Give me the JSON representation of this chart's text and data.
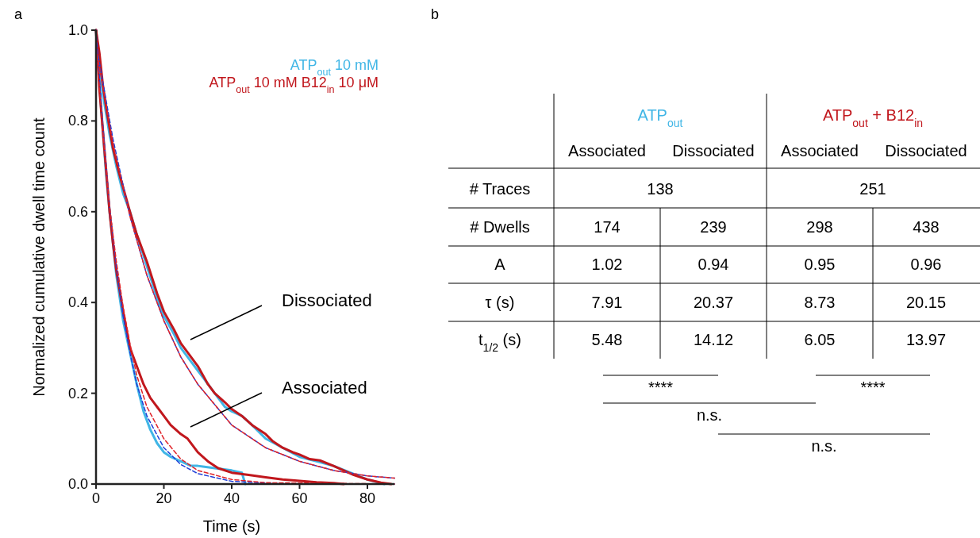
{
  "chart_data": [
    {
      "type": "line",
      "title": "a",
      "xlabel": "Time (s)",
      "ylabel": "Normalized cumulative dwell time count",
      "xlim": [
        0,
        88
      ],
      "xticks": [
        0,
        20,
        40,
        60,
        80
      ],
      "ylim": [
        0,
        1
      ],
      "yticks": [
        {
          "value": 0,
          "label": "0.0"
        },
        {
          "value": 0.2,
          "label": "0.2"
        },
        {
          "value": 0.4,
          "label": "0.4"
        },
        {
          "value": 0.6,
          "label": "0.6"
        },
        {
          "value": 0.8,
          "label": "0.8"
        },
        {
          "value": 1,
          "label": "1.0"
        }
      ],
      "grid": false,
      "legend": "top right",
      "annotations": [
        "Dissociated",
        "Associated"
      ],
      "series": [
        {
          "name": "ATP$_{out}$ 10 mM",
          "color": "#41b6e6",
          "line_style": "solid",
          "x": [
            0,
            2,
            4,
            6,
            8,
            10,
            12,
            15,
            18,
            20,
            23,
            25,
            28,
            30,
            33,
            35,
            38,
            40,
            43,
            46,
            50,
            55,
            60,
            65,
            70,
            75,
            80,
            85
          ],
          "values": [
            1.0,
            0.86,
            0.77,
            0.7,
            0.64,
            0.6,
            0.55,
            0.48,
            0.41,
            0.37,
            0.33,
            0.3,
            0.27,
            0.25,
            0.22,
            0.2,
            0.17,
            0.16,
            0.15,
            0.13,
            0.1,
            0.08,
            0.06,
            0.05,
            0.04,
            0.025,
            0.01,
            0
          ]
        },
        {
          "color": "#41b6e6",
          "line_style": "solid",
          "x": [
            0,
            1,
            2,
            3,
            4,
            5,
            6,
            8,
            10,
            12,
            14,
            16,
            18,
            20,
            22,
            25,
            28,
            30,
            35,
            40,
            43,
            44
          ],
          "values": [
            1.0,
            0.88,
            0.78,
            0.68,
            0.6,
            0.53,
            0.46,
            0.36,
            0.29,
            0.22,
            0.16,
            0.12,
            0.09,
            0.07,
            0.06,
            0.05,
            0.04,
            0.04,
            0.035,
            0.03,
            0.025,
            0
          ]
        },
        {
          "name": "ATP$_{out}$ 10 mM B12$_{in}$ 10 μM",
          "color": "#c1171d",
          "line_style": "solid",
          "x": [
            0,
            1,
            2,
            3,
            5,
            7,
            10,
            12,
            15,
            18,
            20,
            23,
            25,
            27,
            30,
            33,
            35,
            38,
            40,
            43,
            46,
            50,
            52,
            55,
            58,
            60,
            63,
            66,
            70,
            73,
            76,
            80,
            84,
            87
          ],
          "values": [
            1.0,
            0.95,
            0.88,
            0.83,
            0.74,
            0.68,
            0.6,
            0.55,
            0.49,
            0.42,
            0.38,
            0.34,
            0.31,
            0.29,
            0.26,
            0.22,
            0.2,
            0.18,
            0.165,
            0.15,
            0.13,
            0.11,
            0.095,
            0.08,
            0.07,
            0.065,
            0.055,
            0.052,
            0.04,
            0.03,
            0.02,
            0.01,
            0.003,
            0
          ]
        },
        {
          "color": "#c1171d",
          "line_style": "solid",
          "x": [
            0,
            1,
            2,
            3,
            4,
            5,
            6,
            8,
            10,
            12,
            14,
            16,
            18,
            20,
            22,
            25,
            27,
            30,
            33,
            36,
            40,
            45,
            50,
            55,
            60,
            65,
            70,
            73
          ],
          "values": [
            1.0,
            0.87,
            0.78,
            0.69,
            0.6,
            0.53,
            0.47,
            0.38,
            0.3,
            0.26,
            0.22,
            0.19,
            0.17,
            0.15,
            0.13,
            0.11,
            0.1,
            0.07,
            0.05,
            0.035,
            0.025,
            0.02,
            0.015,
            0.01,
            0.007,
            0.004,
            0.002,
            0
          ]
        },
        {
          "color": "#1f3fd8",
          "line_style": "dashed",
          "x": [
            0,
            2,
            4,
            6,
            8,
            10,
            12,
            15,
            20,
            25,
            30,
            40,
            50,
            60,
            88
          ],
          "values": [
            1.0,
            0.79,
            0.61,
            0.48,
            0.37,
            0.29,
            0.22,
            0.15,
            0.08,
            0.043,
            0.023,
            0.006,
            0.002,
            0,
            0
          ]
        },
        {
          "color": "#1f3fd8",
          "line_style": "dashed",
          "x": [
            0,
            5,
            10,
            15,
            20,
            25,
            30,
            40,
            50,
            60,
            70,
            80,
            88
          ],
          "values": [
            0.97,
            0.76,
            0.59,
            0.46,
            0.36,
            0.28,
            0.22,
            0.13,
            0.08,
            0.05,
            0.03,
            0.018,
            0.013
          ]
        },
        {
          "color": "#e0242a",
          "line_style": "dashed",
          "x": [
            0,
            2,
            4,
            6,
            8,
            10,
            12,
            15,
            20,
            25,
            30,
            40,
            50,
            88
          ],
          "values": [
            0.97,
            0.78,
            0.61,
            0.49,
            0.39,
            0.31,
            0.24,
            0.17,
            0.1,
            0.055,
            0.03,
            0.01,
            0.003,
            0
          ]
        },
        {
          "color": "#e0242a",
          "line_style": "dashed",
          "x": [
            0,
            5,
            10,
            15,
            20,
            25,
            30,
            40,
            50,
            60,
            70,
            80,
            88
          ],
          "values": [
            0.96,
            0.75,
            0.59,
            0.46,
            0.36,
            0.28,
            0.22,
            0.13,
            0.08,
            0.05,
            0.03,
            0.018,
            0.013
          ]
        }
      ]
    },
    {
      "type": "other",
      "title": "b",
      "colors": [
        "#41b6e6",
        "#c1171d"
      ],
      "annotations": [
        "ATP$_{out}$",
        "ATP$_{out}$ + B12$_{in}$",
        "Associated",
        "Dissociated",
        "Associated",
        "Dissociated",
        "# Traces",
        "138",
        "251",
        "# Dwells",
        "174",
        "239",
        "298",
        "438",
        "A",
        "1.02",
        "0.94",
        "0.95",
        "0.96",
        "τ (s)",
        "7.91",
        "20.37",
        "8.73",
        "20.15",
        "t$_{1/2}$ (s)",
        "5.48",
        "14.12",
        "6.05",
        "13.97",
        "****",
        "****",
        "n.s.",
        "n.s."
      ]
    }
  ]
}
